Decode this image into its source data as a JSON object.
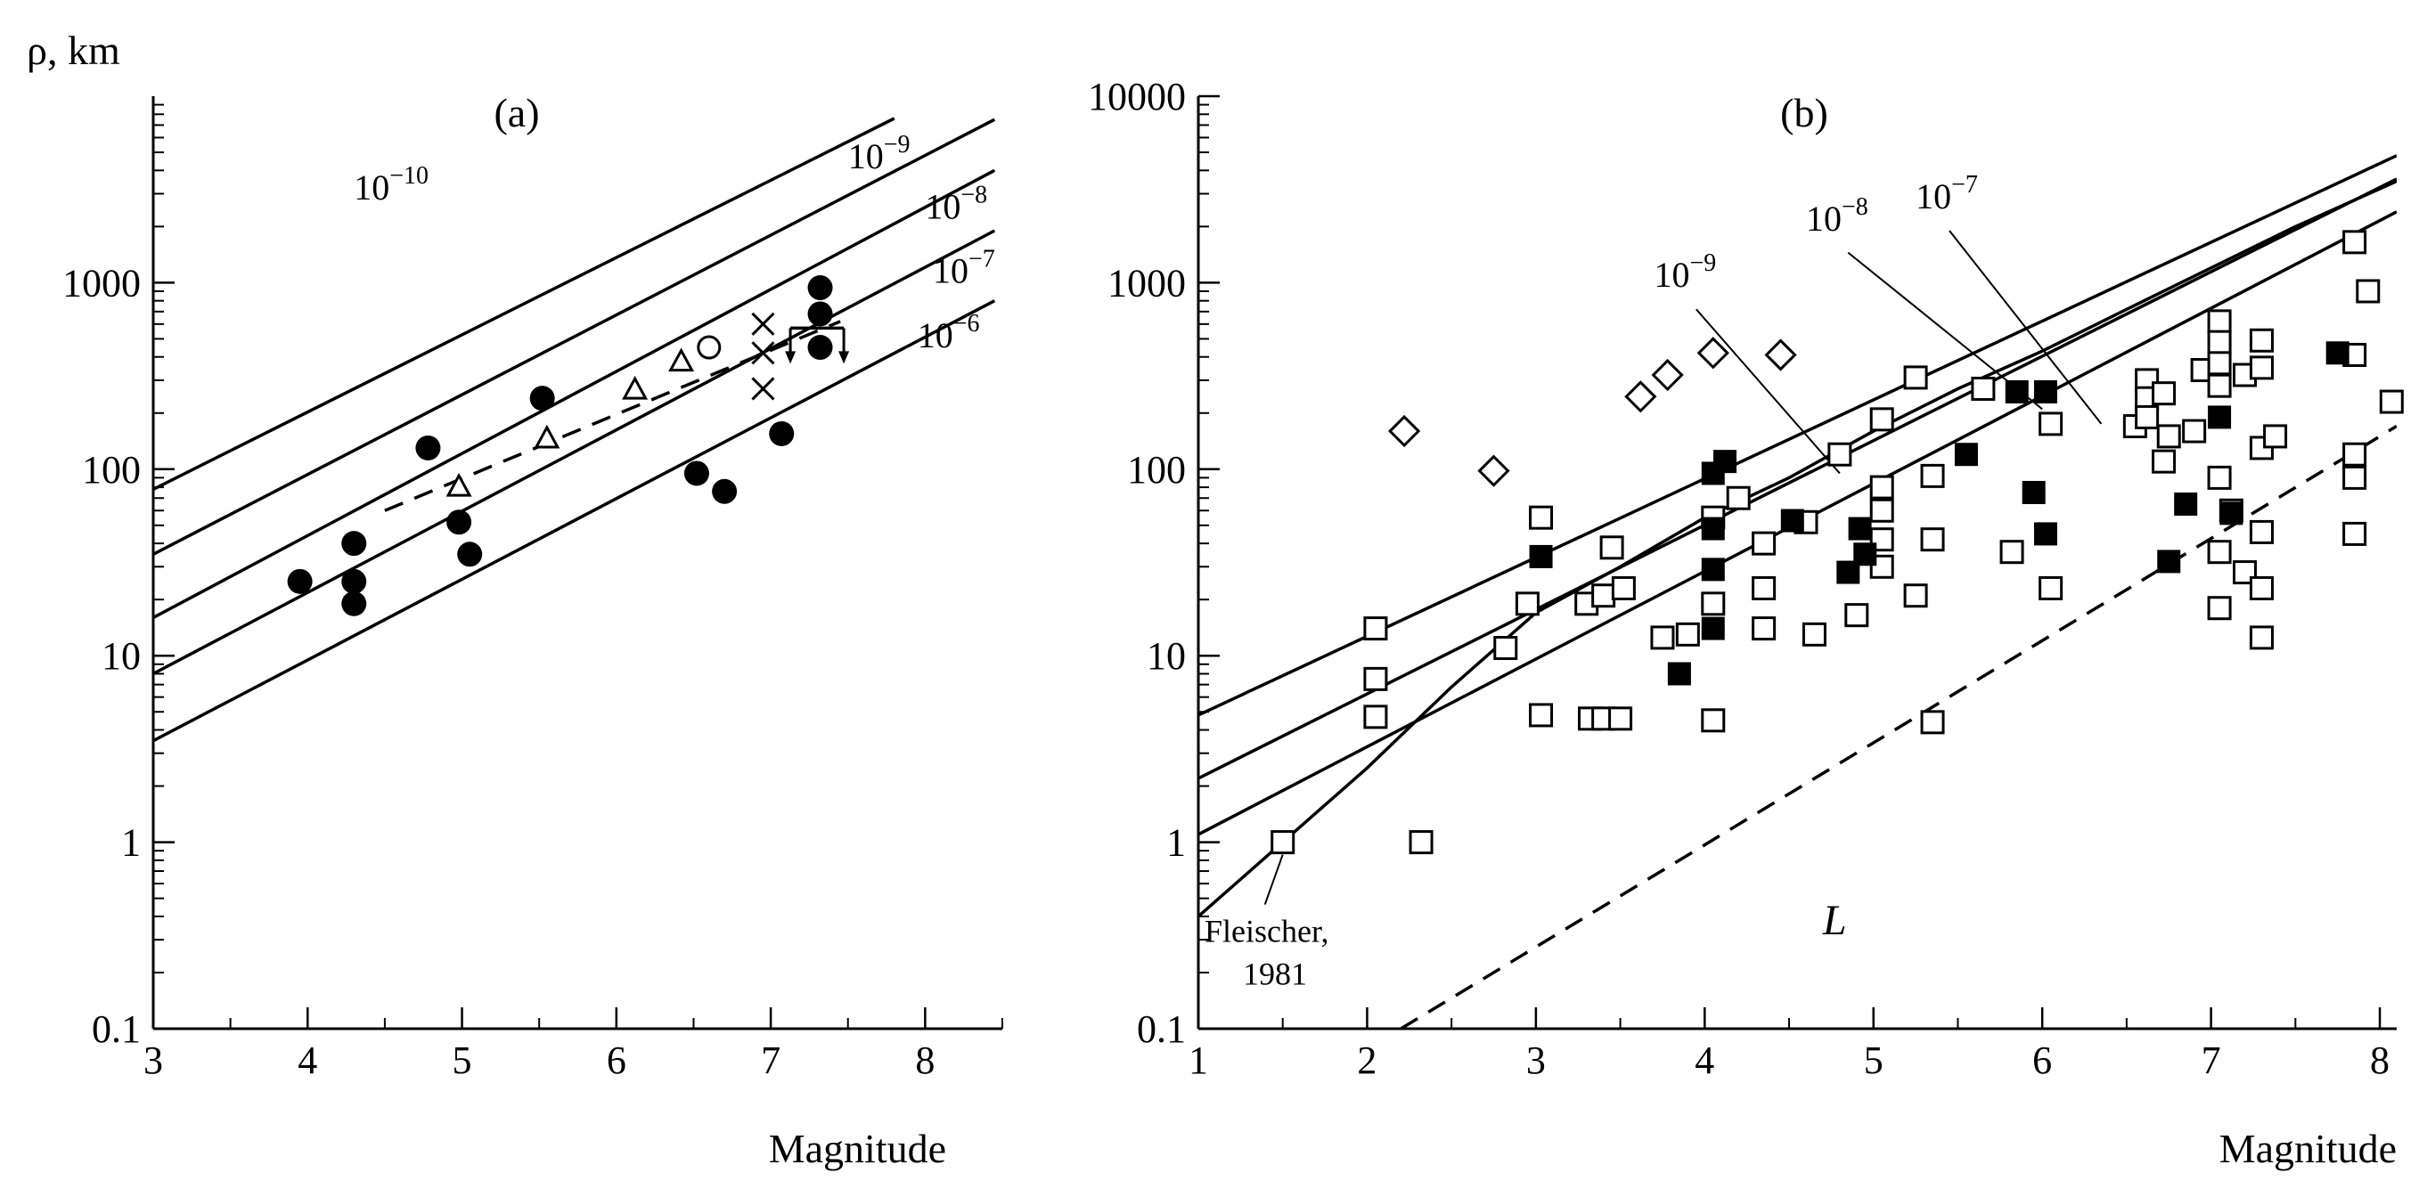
{
  "chart_data": [
    {
      "panel": "a",
      "type": "scatter",
      "title": "(a)",
      "ylabel": "ρ, km",
      "xlabel": "Magnitude",
      "xlim": [
        3,
        8.5
      ],
      "ylim": [
        0.1,
        10000
      ],
      "yscale": "log",
      "x_ticks": [
        3,
        4,
        5,
        6,
        7,
        8
      ],
      "y_ticks": [
        0.1,
        1,
        10,
        100,
        1000
      ],
      "y_tick_labels": [
        "0.1",
        "1",
        "10",
        "100",
        "1000"
      ],
      "lines": [
        {
          "name": "10^-10",
          "base": "10",
          "exp": "−10",
          "style": "solid",
          "points": [
            [
              3,
              78
            ],
            [
              7.8,
              7600
            ]
          ],
          "label_at": [
            4.3,
            2800
          ]
        },
        {
          "name": "10^-9",
          "base": "10",
          "exp": "−9",
          "style": "solid",
          "points": [
            [
              3,
              35
            ],
            [
              8.45,
              7500
            ]
          ],
          "label_at": [
            7.5,
            4100
          ]
        },
        {
          "name": "10^-8",
          "base": "10",
          "exp": "−8",
          "style": "solid",
          "points": [
            [
              3,
              16
            ],
            [
              8.45,
              4000
            ]
          ],
          "label_at": [
            8.0,
            2200
          ]
        },
        {
          "name": "10^-7",
          "base": "10",
          "exp": "−7",
          "style": "solid",
          "points": [
            [
              3,
              8
            ],
            [
              8.45,
              1900
            ]
          ],
          "label_at": [
            8.05,
            1000
          ]
        },
        {
          "name": "10^-6",
          "base": "10",
          "exp": "−6",
          "style": "solid",
          "points": [
            [
              3,
              3.5
            ],
            [
              8.45,
              800
            ]
          ],
          "label_at": [
            7.95,
            450
          ]
        },
        {
          "name": "mean",
          "style": "dashed",
          "points": [
            [
              4.5,
              60
            ],
            [
              7.45,
              620
            ]
          ]
        }
      ],
      "series": [
        {
          "name": "filled circles",
          "marker": "filled-circle",
          "points": [
            [
              3.95,
              25
            ],
            [
              4.3,
              40
            ],
            [
              4.3,
              25
            ],
            [
              4.3,
              19
            ],
            [
              4.78,
              130
            ],
            [
              4.98,
              52
            ],
            [
              5.05,
              35
            ],
            [
              5.52,
              240
            ],
            [
              6.52,
              95
            ],
            [
              6.7,
              76
            ],
            [
              7.07,
              155
            ],
            [
              7.32,
              940
            ],
            [
              7.32,
              680
            ],
            [
              7.32,
              450
            ]
          ]
        },
        {
          "name": "open triangles",
          "marker": "open-triangle",
          "points": [
            [
              4.98,
              80
            ],
            [
              5.55,
              145
            ],
            [
              6.12,
              265
            ],
            [
              6.42,
              375
            ]
          ]
        },
        {
          "name": "open circle",
          "marker": "open-circle",
          "points": [
            [
              6.6,
              450
            ]
          ]
        },
        {
          "name": "crosses",
          "marker": "cross",
          "points": [
            [
              6.95,
              600
            ],
            [
              6.95,
              420
            ],
            [
              6.95,
              270
            ]
          ]
        },
        {
          "name": "range bracket",
          "marker": "bracket",
          "points": [
            [
              7.3,
              500
            ]
          ]
        }
      ]
    },
    {
      "panel": "b",
      "type": "scatter",
      "title": "(b)",
      "xlabel": "Magnitude",
      "xlim": [
        1,
        8.1
      ],
      "ylim": [
        0.1,
        10000
      ],
      "yscale": "log",
      "x_ticks": [
        1,
        2,
        3,
        4,
        5,
        6,
        7,
        8
      ],
      "y_ticks": [
        0.1,
        1,
        10,
        100,
        1000,
        10000
      ],
      "y_tick_labels": [
        "0.1",
        "1",
        "10",
        "100",
        "1000",
        "10000"
      ],
      "lines": [
        {
          "name": "10^-9",
          "base": "10",
          "exp": "−9",
          "style": "solid",
          "points": [
            [
              1,
              4.8
            ],
            [
              8.1,
              4800
            ]
          ],
          "label_at": [
            3.7,
            950
          ]
        },
        {
          "name": "10^-8",
          "base": "10",
          "exp": "−8",
          "style": "solid",
          "points": [
            [
              1,
              2.2
            ],
            [
              8.1,
              3600
            ]
          ],
          "label_at": [
            4.6,
            1900
          ]
        },
        {
          "name": "10^-7",
          "base": "10",
          "exp": "−7",
          "style": "solid",
          "points": [
            [
              1,
              1.1
            ],
            [
              8.1,
              2400
            ]
          ],
          "label_at": [
            5.25,
            2500
          ]
        },
        {
          "name": "L",
          "label": "L",
          "style": "dashed",
          "points": [
            [
              2.2,
              0.1
            ],
            [
              8.1,
              170
            ]
          ],
          "label_at": [
            4.7,
            0.32
          ]
        },
        {
          "name": "Fleischer, 1981",
          "label1": "Fleischer,",
          "label2": "1981",
          "style": "solid",
          "points": [
            [
              1,
              0.4
            ],
            [
              1.5,
              1.0
            ],
            [
              2.0,
              2.5
            ],
            [
              2.5,
              6.8
            ],
            [
              3.0,
              17
            ],
            [
              3.5,
              30
            ],
            [
              4.0,
              55
            ],
            [
              4.5,
              90
            ],
            [
              5.0,
              160
            ],
            [
              5.5,
              270
            ],
            [
              6.0,
              430
            ],
            [
              6.5,
              720
            ],
            [
              7.0,
              1200
            ],
            [
              7.5,
              2000
            ],
            [
              8.1,
              3500
            ]
          ]
        }
      ],
      "series": [
        {
          "name": "open diamonds",
          "marker": "open-diamond",
          "points": [
            [
              2.22,
              160
            ],
            [
              2.75,
              98
            ],
            [
              3.62,
              245
            ],
            [
              3.78,
              320
            ],
            [
              4.05,
              420
            ],
            [
              4.45,
              410
            ]
          ]
        },
        {
          "name": "open squares",
          "marker": "open-square",
          "points": [
            [
              1.5,
              1.0
            ],
            [
              2.05,
              14
            ],
            [
              2.05,
              7.5
            ],
            [
              2.05,
              4.7
            ],
            [
              2.32,
              1.0
            ],
            [
              2.82,
              11
            ],
            [
              2.95,
              19
            ],
            [
              3.03,
              55
            ],
            [
              3.03,
              4.8
            ],
            [
              3.3,
              19
            ],
            [
              3.32,
              4.6
            ],
            [
              3.4,
              4.6
            ],
            [
              3.4,
              21
            ],
            [
              3.45,
              38
            ],
            [
              3.5,
              4.6
            ],
            [
              3.52,
              23
            ],
            [
              3.75,
              12.5
            ],
            [
              3.9,
              13
            ],
            [
              4.05,
              55
            ],
            [
              4.05,
              19
            ],
            [
              4.05,
              4.5
            ],
            [
              4.2,
              70
            ],
            [
              4.35,
              40
            ],
            [
              4.35,
              23
            ],
            [
              4.35,
              14
            ],
            [
              4.6,
              52
            ],
            [
              4.65,
              13
            ],
            [
              4.8,
              120
            ],
            [
              4.9,
              16.5
            ],
            [
              5.05,
              185
            ],
            [
              5.05,
              80
            ],
            [
              5.05,
              60
            ],
            [
              5.05,
              42
            ],
            [
              5.05,
              30
            ],
            [
              5.25,
              310
            ],
            [
              5.25,
              21
            ],
            [
              5.35,
              92
            ],
            [
              5.35,
              42
            ],
            [
              5.35,
              4.4
            ],
            [
              5.65,
              270
            ],
            [
              5.82,
              36
            ],
            [
              6.05,
              175
            ],
            [
              6.05,
              23
            ],
            [
              6.55,
              170
            ],
            [
              6.62,
              300
            ],
            [
              6.62,
              240
            ],
            [
              6.62,
              190
            ],
            [
              6.72,
              255
            ],
            [
              6.72,
              110
            ],
            [
              6.75,
              150
            ],
            [
              6.9,
              160
            ],
            [
              6.95,
              340
            ],
            [
              7.05,
              620
            ],
            [
              7.05,
              480
            ],
            [
              7.05,
              370
            ],
            [
              7.05,
              280
            ],
            [
              7.05,
              90
            ],
            [
              7.05,
              36
            ],
            [
              7.05,
              18
            ],
            [
              7.12,
              60
            ],
            [
              7.2,
              28
            ],
            [
              7.2,
              320
            ],
            [
              7.3,
              490
            ],
            [
              7.3,
              350
            ],
            [
              7.3,
              130
            ],
            [
              7.3,
              46
            ],
            [
              7.3,
              23
            ],
            [
              7.3,
              12.5
            ],
            [
              7.38,
              150
            ],
            [
              7.85,
              1650
            ],
            [
              7.85,
              410
            ],
            [
              7.85,
              120
            ],
            [
              7.85,
              90
            ],
            [
              7.85,
              45
            ],
            [
              7.93,
              900
            ],
            [
              8.07,
              230
            ]
          ]
        },
        {
          "name": "filled squares",
          "marker": "filled-square",
          "points": [
            [
              3.03,
              34
            ],
            [
              3.85,
              8.0
            ],
            [
              4.05,
              95
            ],
            [
              4.05,
              48
            ],
            [
              4.05,
              29
            ],
            [
              4.05,
              14
            ],
            [
              4.12,
              110
            ],
            [
              4.52,
              53
            ],
            [
              4.85,
              28
            ],
            [
              4.92,
              48
            ],
            [
              4.95,
              35
            ],
            [
              5.55,
              120
            ],
            [
              5.85,
              260
            ],
            [
              5.95,
              75
            ],
            [
              6.02,
              260
            ],
            [
              6.02,
              45
            ],
            [
              6.75,
              32
            ],
            [
              6.85,
              65
            ],
            [
              7.05,
              190
            ],
            [
              7.12,
              58
            ],
            [
              7.75,
              420
            ]
          ]
        }
      ]
    }
  ]
}
